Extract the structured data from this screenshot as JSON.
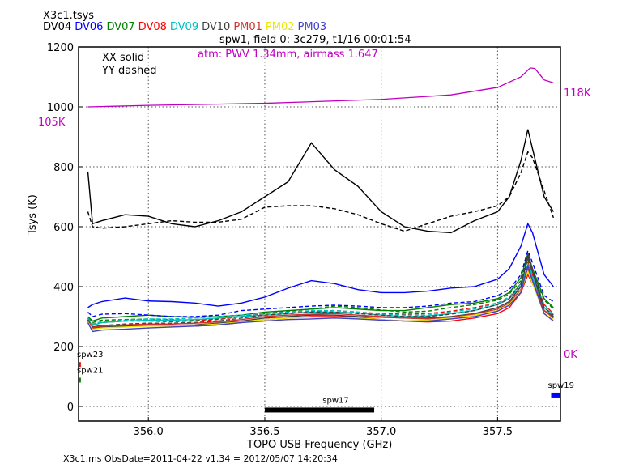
{
  "header": {
    "filename": "X3c1.tsys",
    "antennas": [
      {
        "name": "DV04",
        "color": "#000000"
      },
      {
        "name": "DV06",
        "color": "#0000ff"
      },
      {
        "name": "DV07",
        "color": "#008000"
      },
      {
        "name": "DV08",
        "color": "#ff0000"
      },
      {
        "name": "DV09",
        "color": "#00bfbf"
      },
      {
        "name": "DV10",
        "color": "#404040"
      },
      {
        "name": "PM01",
        "color": "#d03030"
      },
      {
        "name": "PM02",
        "color": "#e8e800"
      },
      {
        "name": "PM03",
        "color": "#4040c8"
      }
    ],
    "subtitle": "spw1,  field 0: 3c279,  t1/16  00:01:54"
  },
  "footer": "X3c1.ms  ObsDate=2011-04-22   v1.34 = 2012/05/07 14:20:34",
  "chart_data": {
    "type": "line",
    "xlabel": "TOPO USB Frequency (GHz)",
    "ylabel": "Tsys (K)",
    "xlim": [
      355.7,
      357.77
    ],
    "ylim": [
      -50,
      1200
    ],
    "xticks": [
      "356.0",
      "356.5",
      "357.0",
      "357.5"
    ],
    "yticks": [
      "0",
      "200",
      "400",
      "600",
      "800",
      "1000",
      "1200"
    ],
    "grid": true,
    "legend_text": [
      "XX solid",
      "YY dashed"
    ],
    "atm_label": "atm: PWV 1.34mm, airmass 1.647",
    "atm_color": "#c000c0",
    "atm_scale_labels": {
      "left_top": "105K",
      "right_top": "118K",
      "right_bottom": "0K"
    },
    "atm_curve": {
      "x": [
        355.74,
        356.0,
        356.5,
        357.0,
        357.3,
        357.5,
        357.6,
        357.64,
        357.66,
        357.7,
        357.74
      ],
      "y": [
        1000,
        1005,
        1012,
        1025,
        1040,
        1065,
        1100,
        1130,
        1128,
        1090,
        1080
      ]
    },
    "x": [
      355.74,
      355.76,
      355.8,
      355.9,
      356.0,
      356.1,
      356.2,
      356.3,
      356.4,
      356.5,
      356.6,
      356.7,
      356.8,
      356.9,
      357.0,
      357.1,
      357.2,
      357.3,
      357.4,
      357.5,
      357.55,
      357.6,
      357.63,
      357.65,
      357.7,
      357.74
    ],
    "series": [
      {
        "antenna": "DV04",
        "pol": "XX",
        "color": "#000000",
        "y": [
          784,
          610,
          620,
          640,
          635,
          610,
          600,
          620,
          650,
          700,
          750,
          880,
          790,
          735,
          650,
          600,
          585,
          580,
          620,
          650,
          700,
          820,
          925,
          860,
          700,
          650
        ]
      },
      {
        "antenna": "DV04",
        "pol": "YY",
        "color": "#000000",
        "y": [
          650,
          600,
          595,
          600,
          610,
          620,
          615,
          615,
          625,
          665,
          670,
          670,
          660,
          640,
          610,
          585,
          610,
          635,
          650,
          670,
          700,
          780,
          850,
          830,
          720,
          630
        ]
      },
      {
        "antenna": "DV06",
        "pol": "XX",
        "color": "#0000ff",
        "y": [
          330,
          340,
          350,
          362,
          352,
          350,
          345,
          335,
          345,
          365,
          395,
          420,
          410,
          390,
          380,
          380,
          385,
          395,
          400,
          425,
          460,
          535,
          610,
          580,
          440,
          400
        ]
      },
      {
        "antenna": "DV06",
        "pol": "YY",
        "color": "#0000ff",
        "y": [
          315,
          300,
          308,
          310,
          305,
          300,
          300,
          305,
          320,
          325,
          330,
          335,
          338,
          335,
          330,
          330,
          335,
          345,
          350,
          370,
          390,
          440,
          520,
          480,
          370,
          350
        ]
      },
      {
        "antenna": "DV07",
        "pol": "XX",
        "color": "#008000",
        "y": [
          300,
          285,
          295,
          300,
          305,
          300,
          298,
          300,
          305,
          315,
          320,
          325,
          330,
          325,
          320,
          320,
          330,
          340,
          345,
          360,
          380,
          430,
          510,
          460,
          360,
          330
        ]
      },
      {
        "antenna": "DV07",
        "pol": "YY",
        "color": "#008000",
        "y": [
          295,
          280,
          288,
          290,
          292,
          290,
          288,
          292,
          300,
          310,
          318,
          325,
          335,
          330,
          322,
          315,
          318,
          330,
          340,
          355,
          375,
          420,
          490,
          450,
          355,
          325
        ]
      },
      {
        "antenna": "DV08",
        "pol": "XX",
        "color": "#ff0000",
        "y": [
          290,
          265,
          270,
          272,
          270,
          268,
          268,
          272,
          280,
          290,
          295,
          300,
          300,
          298,
          290,
          285,
          282,
          285,
          295,
          310,
          330,
          380,
          440,
          410,
          320,
          300
        ]
      },
      {
        "antenna": "DV08",
        "pol": "YY",
        "color": "#ff0000",
        "y": [
          295,
          275,
          280,
          285,
          285,
          283,
          285,
          290,
          300,
          310,
          315,
          318,
          320,
          315,
          310,
          308,
          310,
          318,
          330,
          345,
          365,
          410,
          480,
          440,
          340,
          310
        ]
      },
      {
        "antenna": "DV09",
        "pol": "XX",
        "color": "#00bfbf",
        "y": [
          290,
          270,
          280,
          285,
          288,
          288,
          290,
          295,
          300,
          305,
          310,
          315,
          315,
          312,
          305,
          300,
          302,
          310,
          320,
          340,
          360,
          400,
          470,
          430,
          330,
          300
        ]
      },
      {
        "antenna": "DV09",
        "pol": "YY",
        "color": "#00bfbf",
        "y": [
          295,
          275,
          283,
          288,
          292,
          292,
          295,
          300,
          305,
          310,
          315,
          320,
          320,
          315,
          308,
          305,
          305,
          315,
          325,
          345,
          365,
          410,
          475,
          440,
          340,
          305
        ]
      },
      {
        "antenna": "DV10",
        "pol": "XX",
        "color": "#404040",
        "y": [
          285,
          260,
          265,
          268,
          270,
          270,
          272,
          278,
          285,
          295,
          300,
          305,
          305,
          300,
          298,
          295,
          295,
          300,
          310,
          330,
          350,
          400,
          500,
          450,
          320,
          300
        ]
      },
      {
        "antenna": "DV10",
        "pol": "YY",
        "color": "#404040",
        "y": [
          290,
          265,
          270,
          275,
          278,
          278,
          280,
          285,
          295,
          305,
          310,
          315,
          315,
          310,
          305,
          300,
          300,
          308,
          320,
          340,
          360,
          410,
          510,
          460,
          330,
          305
        ]
      },
      {
        "antenna": "PM01",
        "pol": "XX",
        "color": "#d03030",
        "y": [
          285,
          262,
          268,
          272,
          275,
          275,
          278,
          282,
          290,
          300,
          305,
          308,
          310,
          305,
          300,
          295,
          292,
          298,
          308,
          325,
          345,
          390,
          460,
          420,
          320,
          295
        ]
      },
      {
        "antenna": "PM02",
        "pol": "XX",
        "color": "#e8e800",
        "y": [
          282,
          258,
          262,
          265,
          268,
          268,
          270,
          275,
          282,
          290,
          295,
          298,
          298,
          295,
          290,
          285,
          288,
          295,
          305,
          320,
          340,
          385,
          450,
          410,
          310,
          290
        ]
      },
      {
        "antenna": "PM03",
        "pol": "XX",
        "color": "#4040c8",
        "y": [
          280,
          250,
          255,
          258,
          262,
          265,
          268,
          272,
          280,
          285,
          290,
          292,
          295,
          292,
          288,
          285,
          285,
          292,
          300,
          318,
          338,
          380,
          470,
          420,
          310,
          285
        ]
      }
    ],
    "spw_markers": [
      {
        "label": "spw23",
        "color": "#ff0000",
        "x": [
          355.7,
          355.71
        ],
        "y": 140
      },
      {
        "label": "spw21",
        "color": "#008000",
        "x": [
          355.7,
          355.71
        ],
        "y": 88
      },
      {
        "label": "spw17",
        "color": "#000000",
        "x": [
          356.5,
          356.97
        ],
        "y": -12
      },
      {
        "label": "spw19",
        "color": "#0000ff",
        "x": [
          357.73,
          357.77
        ],
        "y": 38
      }
    ]
  }
}
